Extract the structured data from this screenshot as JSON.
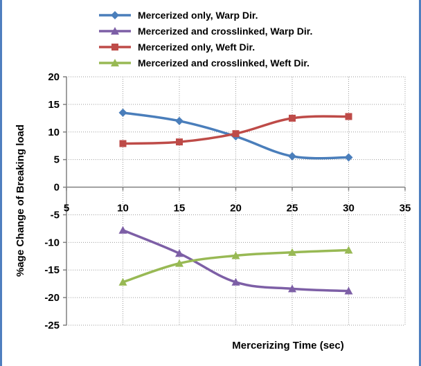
{
  "chart_data": {
    "type": "line",
    "title": "",
    "xlabel": "Mercerizing Time (sec)",
    "ylabel": "%age Change of Breaking load",
    "xlim": [
      5,
      35
    ],
    "ylim": [
      -25,
      20
    ],
    "xticks": [
      5,
      10,
      15,
      20,
      25,
      30,
      35
    ],
    "yticks": [
      20,
      15,
      10,
      5,
      0,
      -5,
      -10,
      -15,
      -20,
      -25
    ],
    "grid": true,
    "legend_position": "top",
    "x": [
      10,
      15,
      20,
      25,
      30
    ],
    "series": [
      {
        "name": "Mercerized only, Warp Dir.",
        "color": "#4a7ebb",
        "marker": "diamond",
        "values": [
          13.5,
          12.0,
          9.2,
          5.6,
          5.4
        ]
      },
      {
        "name": "Mercerized and crosslinked, Warp Dir.",
        "color": "#7d5fa6",
        "marker": "triangle",
        "values": [
          -7.8,
          -12.0,
          -17.2,
          -18.4,
          -18.8
        ]
      },
      {
        "name": "Mercerized only, Weft Dir.",
        "color": "#be4b48",
        "marker": "square",
        "values": [
          7.9,
          8.2,
          9.7,
          12.5,
          12.8
        ]
      },
      {
        "name": "Mercerized and crosslinked, Weft Dir.",
        "color": "#98b954",
        "marker": "triangle",
        "values": [
          -17.2,
          -13.8,
          -12.4,
          -11.8,
          -11.4
        ]
      }
    ]
  }
}
